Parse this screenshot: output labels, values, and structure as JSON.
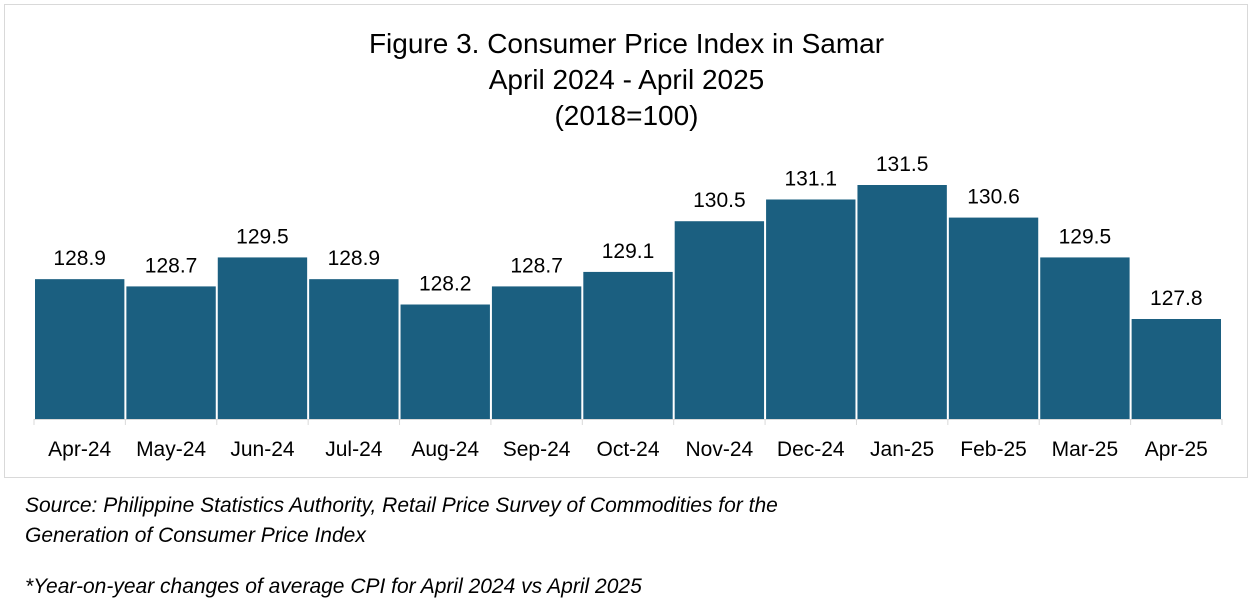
{
  "chart_data": {
    "type": "bar",
    "title": "Figure 3. Consumer Price Index in Samar",
    "subtitle": "April 2024 - April 2025",
    "base": "(2018=100)",
    "xlabel": "",
    "ylabel": "",
    "categories": [
      "Apr-24",
      "May-24",
      "Jun-24",
      "Jul-24",
      "Aug-24",
      "Sep-24",
      "Oct-24",
      "Nov-24",
      "Dec-24",
      "Jan-25",
      "Feb-25",
      "Mar-25",
      "Apr-25"
    ],
    "values": [
      128.9,
      128.7,
      129.5,
      128.9,
      128.2,
      128.7,
      129.1,
      130.5,
      131.1,
      131.5,
      130.6,
      129.5,
      127.8
    ],
    "value_labels": [
      "128.9",
      "128.7",
      "129.5",
      "128.9",
      "128.2",
      "128.7",
      "129.1",
      "130.5",
      "131.1",
      "131.5",
      "130.6",
      "129.5",
      "127.8"
    ],
    "grid": false,
    "legend": "none",
    "bar_color": "#1b5f80"
  },
  "notes": {
    "source": "Source: Philippine Statistics Authority, Retail Price Survey of Commodities for the\nGeneration of Consumer Price Index",
    "footnote": "*Year-on-year changes of average CPI for April 2024 vs April 2025"
  }
}
